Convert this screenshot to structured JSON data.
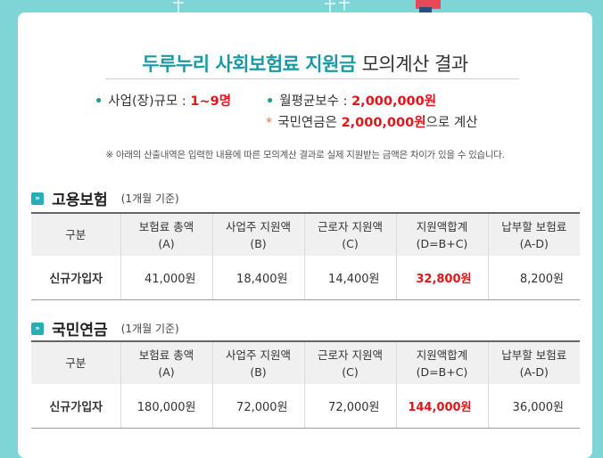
{
  "title": {
    "accent": "두루누리 사회보험료 지원금",
    "rest": "모의계산 결과"
  },
  "info": {
    "scale_label": "사업(장)규모 :",
    "scale_value": "1~9명",
    "wage_label": "월평균보수  :",
    "wage_value": "2,000,000원",
    "pension_prefix": "국민연금은",
    "pension_value": "2,000,000원",
    "pension_suffix": "으로 계산"
  },
  "note": "※ 아래의 산출내역은 입력한 내용에 따른 모의계산 결과로 실제 지원받는 금액은 차이가 있을 수 있습니다.",
  "columns": [
    [
      "구분",
      ""
    ],
    [
      "보험료 총액",
      "(A)"
    ],
    [
      "사업주 지원액",
      "(B)"
    ],
    [
      "근로자 지원액",
      "(C)"
    ],
    [
      "지원액합계",
      "(D=B+C)"
    ],
    [
      "납부할 보험료",
      "(A-D)"
    ]
  ],
  "employment": {
    "icon": "»",
    "title": "고용보험",
    "subtitle": "(1개월 기준)",
    "row": [
      "신규가입자",
      "41,000원",
      "18,400원",
      "14,400원",
      "32,800원",
      "8,200원"
    ]
  },
  "pension": {
    "icon": "»",
    "title": "국민연금",
    "subtitle": "(1개월 기준)",
    "row": [
      "신규가입자",
      "180,000원",
      "72,000원",
      "72,000원",
      "144,000원",
      "36,000원"
    ]
  }
}
